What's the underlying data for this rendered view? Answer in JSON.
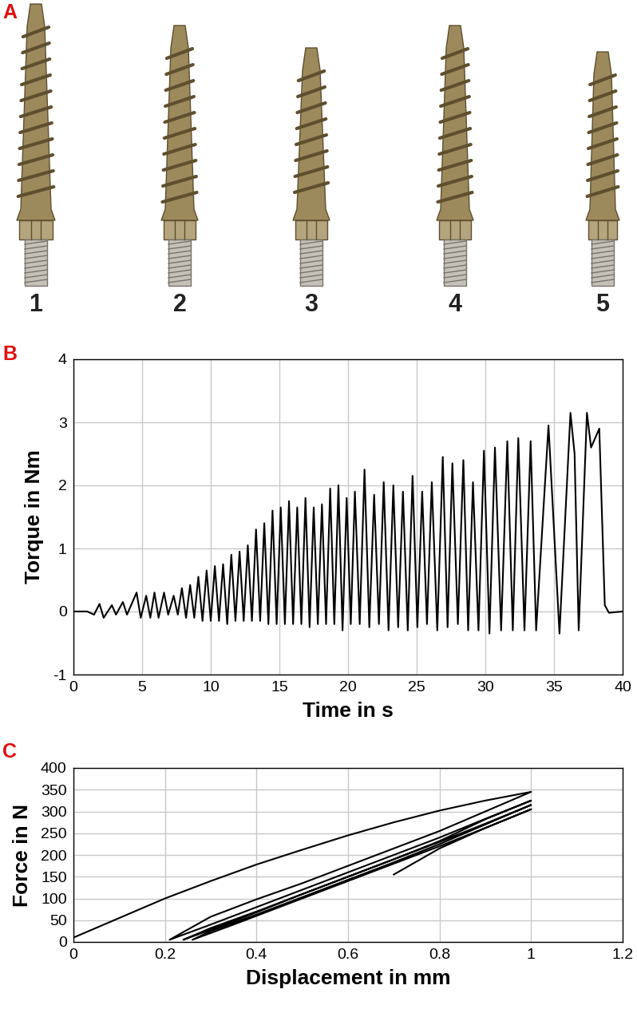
{
  "photo": {
    "annotations": [
      "A"
    ],
    "labels": [
      1,
      2,
      3,
      4,
      5
    ]
  },
  "chart_data": [
    {
      "type": "line",
      "annotations": [
        "B"
      ],
      "x_label": "Time in s",
      "y_label": "Torque in Nm",
      "color": "#000000",
      "grid": true,
      "xlim": [
        0,
        40
      ],
      "xticks": [
        0,
        5,
        10,
        15,
        20,
        25,
        30,
        35,
        40
      ],
      "ylim": [
        -1,
        4
      ],
      "yticks": [
        -1,
        0,
        1,
        2,
        3,
        4
      ],
      "x": [
        0,
        1.0,
        1.5,
        1.9,
        2.2,
        2.8,
        3.1,
        3.6,
        3.9,
        4.6,
        4.9,
        5.3,
        5.6,
        5.9,
        6.2,
        6.6,
        6.9,
        7.3,
        7.6,
        7.9,
        8.2,
        8.5,
        8.8,
        9.1,
        9.4,
        9.7,
        10.0,
        10.3,
        10.6,
        10.9,
        11.2,
        11.5,
        11.8,
        12.1,
        12.4,
        12.7,
        13.0,
        13.3,
        13.6,
        13.9,
        14.2,
        14.5,
        14.8,
        15.1,
        15.4,
        15.7,
        16.0,
        16.3,
        16.6,
        16.9,
        17.2,
        17.5,
        17.8,
        18.1,
        18.4,
        18.7,
        19.0,
        19.3,
        19.6,
        19.9,
        20.2,
        20.5,
        20.85,
        21.2,
        21.55,
        21.9,
        22.25,
        22.6,
        22.95,
        23.3,
        23.65,
        24.0,
        24.35,
        24.7,
        25.05,
        25.4,
        25.75,
        26.1,
        26.5,
        26.9,
        27.25,
        27.6,
        28.0,
        28.4,
        28.75,
        29.1,
        29.5,
        29.9,
        30.3,
        30.7,
        31.15,
        31.6,
        32.0,
        32.4,
        32.85,
        33.3,
        33.7,
        34.6,
        35.4,
        36.2,
        36.5,
        36.8,
        37.4,
        37.7,
        38.3,
        38.7,
        39.0,
        40.0
      ],
      "values": [
        0,
        0,
        -0.05,
        0.12,
        -0.1,
        0.1,
        -0.05,
        0.15,
        -0.05,
        0.3,
        -0.1,
        0.25,
        -0.1,
        0.3,
        -0.1,
        0.3,
        -0.05,
        0.25,
        -0.05,
        0.37,
        -0.1,
        0.42,
        -0.1,
        0.55,
        -0.15,
        0.65,
        -0.15,
        0.72,
        -0.15,
        0.75,
        -0.2,
        0.9,
        -0.15,
        0.95,
        -0.15,
        1.05,
        -0.15,
        1.3,
        -0.15,
        1.4,
        -0.2,
        1.6,
        -0.2,
        1.65,
        -0.2,
        1.75,
        -0.2,
        1.65,
        -0.2,
        1.8,
        -0.25,
        1.65,
        -0.2,
        1.7,
        -0.2,
        1.95,
        -0.2,
        2.0,
        -0.3,
        1.8,
        -0.2,
        1.9,
        -0.2,
        2.25,
        -0.25,
        1.85,
        -0.2,
        2.05,
        -0.3,
        2.0,
        -0.25,
        1.9,
        -0.3,
        2.15,
        -0.25,
        1.9,
        -0.2,
        2.05,
        -0.3,
        2.45,
        -0.25,
        2.35,
        -0.2,
        2.4,
        -0.3,
        2.05,
        -0.3,
        2.55,
        -0.35,
        2.6,
        -0.3,
        2.7,
        -0.3,
        2.75,
        -0.3,
        2.7,
        -0.3,
        2.95,
        -0.35,
        3.15,
        2.5,
        -0.3,
        3.15,
        2.6,
        2.9,
        0.1,
        -0.02,
        0
      ]
    },
    {
      "type": "line",
      "annotations": [
        "C"
      ],
      "x_label": "Displacement in mm",
      "y_label": "Force in N",
      "color": "#000000",
      "grid": true,
      "xlim": [
        0,
        1.2
      ],
      "xticks": [
        0,
        0.2,
        0.4,
        0.6,
        0.8,
        1,
        1.2
      ],
      "ylim": [
        0,
        400
      ],
      "yticks": [
        0,
        50,
        100,
        150,
        200,
        250,
        300,
        350,
        400
      ],
      "x": [
        0,
        0.1,
        0.2,
        0.3,
        0.4,
        0.5,
        0.6,
        0.7,
        0.8,
        0.9,
        1.0,
        0.9,
        0.8,
        0.7,
        0.6,
        0.5,
        0.4,
        0.3,
        0.21,
        0.3,
        0.4,
        0.5,
        0.6,
        0.7,
        0.8,
        0.9,
        1.0,
        0.9,
        0.8,
        0.7,
        0.6,
        0.5,
        0.4,
        0.3,
        0.24,
        0.3,
        0.4,
        0.5,
        0.6,
        0.7,
        0.8,
        0.9,
        1.0,
        0.9,
        0.8,
        0.7,
        0.6,
        0.5,
        0.4,
        0.3,
        0.26,
        0.35,
        0.5,
        0.6,
        0.7,
        0.8,
        0.9,
        1.0,
        0.9,
        0.8,
        0.7
      ],
      "values": [
        10,
        55,
        100,
        140,
        178,
        212,
        245,
        275,
        302,
        325,
        345,
        300,
        255,
        215,
        175,
        135,
        98,
        58,
        5,
        40,
        80,
        120,
        160,
        200,
        240,
        283,
        325,
        282,
        232,
        190,
        150,
        110,
        70,
        32,
        5,
        28,
        68,
        110,
        150,
        190,
        230,
        272,
        315,
        270,
        225,
        183,
        143,
        103,
        63,
        25,
        5,
        40,
        100,
        140,
        180,
        220,
        262,
        305,
        262,
        215,
        155
      ]
    }
  ]
}
